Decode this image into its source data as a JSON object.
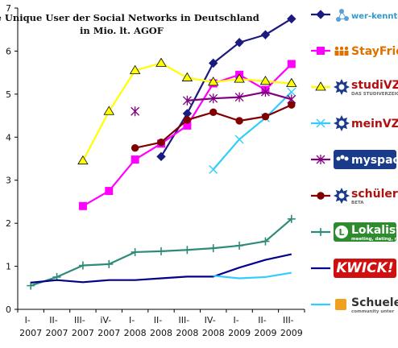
{
  "chart_data": {
    "type": "line",
    "title": "Die Unique User der Social Networks in Deutschland",
    "subtitle": "in Mio. lt. AGOF",
    "xlabel": "",
    "ylabel": "",
    "ylim": [
      0,
      7
    ],
    "yticks": [
      0,
      1,
      2,
      3,
      4,
      5,
      6,
      7
    ],
    "grid": false,
    "legend_position": "right",
    "categories": [
      [
        "I-",
        "2007"
      ],
      [
        "II-",
        "2007"
      ],
      [
        "III-",
        "2007"
      ],
      [
        "iV-",
        "2007"
      ],
      [
        "I-",
        "2008"
      ],
      [
        "II-",
        "2008"
      ],
      [
        "III-",
        "2008"
      ],
      [
        "IV-",
        "2008"
      ],
      [
        "I-",
        "2009"
      ],
      [
        "II-",
        "2009"
      ],
      [
        "III-",
        "2009"
      ]
    ],
    "series": [
      {
        "name": "wer-kennt-wen",
        "color": "#1a1a80",
        "marker": "diamond",
        "values": [
          null,
          null,
          null,
          null,
          null,
          3.55,
          4.55,
          5.72,
          6.2,
          6.38,
          6.75
        ]
      },
      {
        "name": "StayFriends",
        "color": "#ff00ff",
        "marker": "square",
        "values": [
          null,
          null,
          2.4,
          2.75,
          3.48,
          3.85,
          4.27,
          5.25,
          5.45,
          5.1,
          5.7
        ]
      },
      {
        "name": "studiVZ",
        "color": "#ffff00",
        "marker": "triangle",
        "values": [
          null,
          null,
          3.45,
          4.6,
          5.55,
          5.72,
          5.38,
          5.28,
          5.35,
          5.3,
          5.25
        ]
      },
      {
        "name": "meinVZ",
        "color": "#33ccff",
        "marker": "x",
        "values": [
          null,
          null,
          null,
          null,
          null,
          null,
          null,
          3.25,
          3.95,
          4.45,
          5.05
        ]
      },
      {
        "name": "myspace",
        "color": "#800080",
        "marker": "star",
        "values": [
          null,
          null,
          null,
          null,
          4.6,
          null,
          4.85,
          4.9,
          4.93,
          5.05,
          4.88
        ]
      },
      {
        "name": "schülerVZ",
        "color": "#800000",
        "marker": "circle",
        "values": [
          null,
          null,
          null,
          null,
          3.75,
          3.88,
          4.4,
          4.58,
          4.38,
          4.48,
          4.75
        ]
      },
      {
        "name": "lokalisten",
        "color": "#2e8b7a",
        "marker": "plus",
        "values": [
          0.55,
          0.75,
          1.02,
          1.05,
          1.33,
          1.35,
          1.38,
          1.42,
          1.48,
          1.58,
          2.1
        ]
      },
      {
        "name": "KWICK!",
        "color": "#00008b",
        "marker": "none",
        "values": [
          0.62,
          0.68,
          0.63,
          0.68,
          0.68,
          0.72,
          0.76,
          0.76,
          0.97,
          1.15,
          1.28
        ]
      },
      {
        "name": "Schueler.cc",
        "color": "#33ccff",
        "marker": "none",
        "values": [
          null,
          null,
          null,
          null,
          null,
          null,
          null,
          0.78,
          0.72,
          0.75,
          0.85
        ]
      }
    ]
  },
  "legend_logos": [
    {
      "series": "wer-kennt-wen",
      "text": "wer-kennt-wen",
      "icon": "molecule-icon",
      "text_color": "#3399cc"
    },
    {
      "series": "StayFriends",
      "text": "StayFriends",
      "icon": "people-icon",
      "text_color": "#e07000"
    },
    {
      "series": "studiVZ",
      "text": "studiVZ",
      "sub": "DAS STUDIVERZEICHNIS",
      "icon": "star-badge-icon",
      "text_color": "#b01010"
    },
    {
      "series": "meinVZ",
      "text": "meinVZ",
      "icon": "star-badge-icon",
      "text_color": "#b01010"
    },
    {
      "series": "myspace",
      "text": "myspace",
      "icon": "myspace-icon",
      "text_color": "#ffffff",
      "bg": "#1a3a8a"
    },
    {
      "series": "schülerVZ",
      "text": "schülerVZ",
      "sub": "BETA",
      "icon": "star-badge-icon",
      "text_color": "#b01010"
    },
    {
      "series": "lokalisten",
      "text": "Lokalisten",
      "sub": "meeting, dating, more",
      "icon": "l-icon",
      "text_color": "#ffffff",
      "bg": "#2e8b2e"
    },
    {
      "series": "KWICK!",
      "text": "KWICK!",
      "icon": "kwick-icon",
      "text_color": "#ffffff",
      "bg": "#d01010"
    },
    {
      "series": "Schueler.cc",
      "text": "Schueler.cc",
      "sub": "community unter",
      "icon": "schueler-cc-icon",
      "text_color": "#333333"
    }
  ]
}
